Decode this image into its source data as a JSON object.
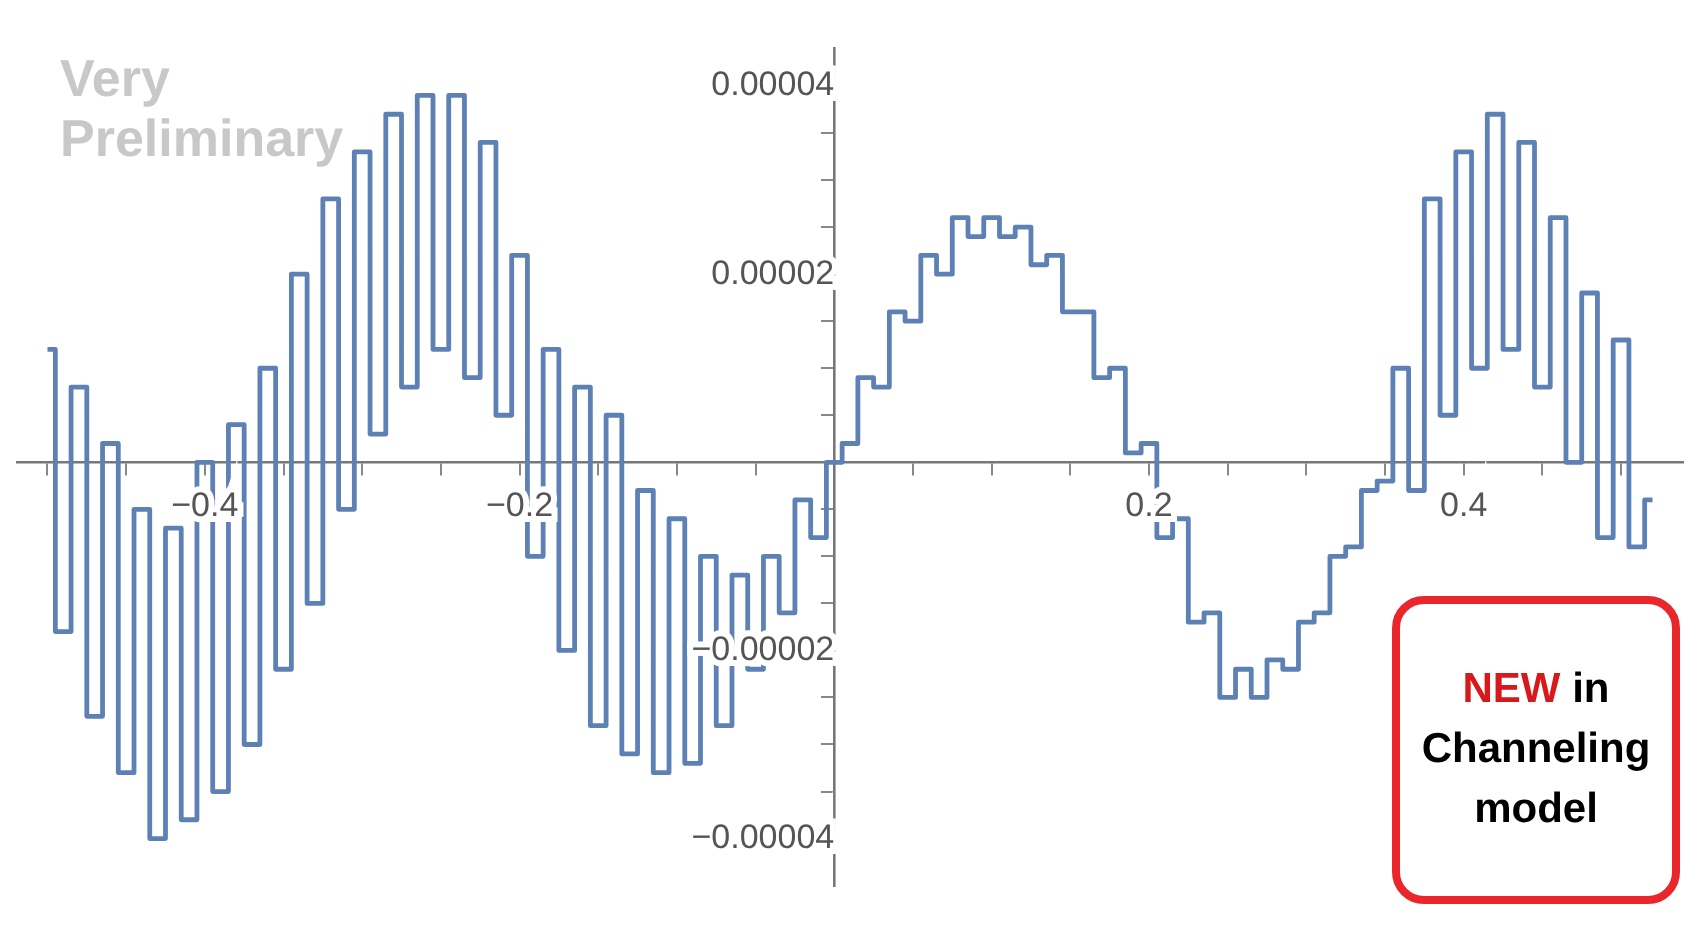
{
  "chart_data": {
    "type": "step",
    "xlim": [
      -0.52,
      0.54
    ],
    "ylim": [
      -4.5e-05,
      4.4e-05
    ],
    "xticks": [
      {
        "value": -0.5,
        "label": null
      },
      {
        "value": -0.45,
        "label": null
      },
      {
        "value": -0.4,
        "label": "−0.4"
      },
      {
        "value": -0.35,
        "label": null
      },
      {
        "value": -0.3,
        "label": null
      },
      {
        "value": -0.25,
        "label": null
      },
      {
        "value": -0.2,
        "label": "−0.2"
      },
      {
        "value": -0.15,
        "label": null
      },
      {
        "value": -0.1,
        "label": null
      },
      {
        "value": -0.05,
        "label": null
      },
      {
        "value": 0.05,
        "label": null
      },
      {
        "value": 0.1,
        "label": null
      },
      {
        "value": 0.15,
        "label": null
      },
      0.2,
      {
        "value": 0.25,
        "label": null
      },
      {
        "value": 0.3,
        "label": null
      },
      {
        "value": 0.35,
        "label": null
      },
      0.4,
      {
        "value": 0.45,
        "label": null
      },
      {
        "value": 0.5,
        "label": null
      }
    ],
    "yticks": [
      {
        "value": -4e-05,
        "label": "−0.00004"
      },
      {
        "value": -3.5e-05,
        "label": null
      },
      {
        "value": -3e-05,
        "label": null
      },
      {
        "value": -2.5e-05,
        "label": null
      },
      {
        "value": -2e-05,
        "label": "−0.00002"
      },
      {
        "value": -1.5e-05,
        "label": null
      },
      {
        "value": -1e-05,
        "label": null
      },
      {
        "value": -5e-06,
        "label": null
      },
      {
        "value": 5e-06,
        "label": null
      },
      {
        "value": 1e-05,
        "label": null
      },
      {
        "value": 1.5e-05,
        "label": null
      },
      {
        "value": 2e-05,
        "label": "0.00002"
      },
      {
        "value": 2.5e-05,
        "label": null
      },
      {
        "value": 3e-05,
        "label": null
      },
      {
        "value": 3.5e-05,
        "label": null
      },
      {
        "value": 4e-05,
        "label": "0.00004"
      }
    ],
    "x": [
      -0.5,
      -0.49,
      -0.48,
      -0.47,
      -0.46,
      -0.45,
      -0.44,
      -0.43,
      -0.42,
      -0.41,
      -0.4,
      -0.39,
      -0.38,
      -0.37,
      -0.36,
      -0.35,
      -0.34,
      -0.33,
      -0.32,
      -0.31,
      -0.3,
      -0.29,
      -0.28,
      -0.27,
      -0.26,
      -0.25,
      -0.24,
      -0.23,
      -0.22,
      -0.21,
      -0.2,
      -0.19,
      -0.18,
      -0.17,
      -0.16,
      -0.15,
      -0.14,
      -0.13,
      -0.12,
      -0.11,
      -0.1,
      -0.09,
      -0.08,
      -0.07,
      -0.06,
      -0.05,
      -0.04,
      -0.03,
      -0.02,
      -0.01,
      0,
      0.01,
      0.02,
      0.03,
      0.04,
      0.05,
      0.06,
      0.07,
      0.08,
      0.09,
      0.1,
      0.11,
      0.12,
      0.13,
      0.14,
      0.15,
      0.16,
      0.17,
      0.18,
      0.19,
      0.2,
      0.21,
      0.22,
      0.23,
      0.24,
      0.25,
      0.26,
      0.27,
      0.28,
      0.29,
      0.3,
      0.31,
      0.32,
      0.33,
      0.34,
      0.35,
      0.36,
      0.37,
      0.38,
      0.39,
      0.4,
      0.41,
      0.42,
      0.43,
      0.44,
      0.45,
      0.46,
      0.47,
      0.48,
      0.49,
      0.5,
      0.51,
      0.52
    ],
    "series": [
      {
        "color": "#5e81b5",
        "values": [
          1.2e-05,
          -1.8e-05,
          8e-06,
          -2.7e-05,
          2e-06,
          -3.3e-05,
          -5e-06,
          -4e-05,
          -7e-06,
          -3.8e-05,
          0,
          -3.5e-05,
          4e-06,
          -3e-05,
          1e-05,
          -2.2e-05,
          2e-05,
          -1.5e-05,
          2.8e-05,
          -5e-06,
          3.3e-05,
          3e-06,
          3.7e-05,
          8e-06,
          3.9e-05,
          1.2e-05,
          3.9e-05,
          9e-06,
          3.4e-05,
          5e-06,
          2.2e-05,
          -1e-05,
          1.2e-05,
          -2e-05,
          8e-06,
          -2.8e-05,
          5e-06,
          -3.1e-05,
          -3e-06,
          -3.3e-05,
          -6e-06,
          -3.2e-05,
          -1e-05,
          -2.8e-05,
          -1.2e-05,
          -2.2e-05,
          -1e-05,
          -1.6e-05,
          -4e-06,
          -8e-06,
          0,
          2e-06,
          9e-06,
          8e-06,
          1.6e-05,
          1.5e-05,
          2.2e-05,
          2e-05,
          2.6e-05,
          2.4e-05,
          2.6e-05,
          2.4e-05,
          2.5e-05,
          2.1e-05,
          2.2e-05,
          1.6e-05,
          1.6e-05,
          9e-06,
          1e-05,
          1e-06,
          2e-06,
          -8e-06,
          -6e-06,
          -1.7e-05,
          -1.6e-05,
          -2.5e-05,
          -2.2e-05,
          -2.5e-05,
          -2.1e-05,
          -2.2e-05,
          -1.7e-05,
          -1.6e-05,
          -1e-05,
          -9e-06,
          -3e-06,
          -2e-06,
          1e-05,
          -3e-06,
          2.8e-05,
          5e-06,
          3.3e-05,
          1e-05,
          3.7e-05,
          1.2e-05,
          3.4e-05,
          8e-06,
          2.6e-05,
          0,
          1.8e-05,
          -8e-06,
          1.3e-05,
          -9e-06,
          -4e-06
        ]
      }
    ],
    "annotations": [
      "Very Preliminary",
      "NEW in Channeling model"
    ],
    "legend": false,
    "grid": false
  }
}
